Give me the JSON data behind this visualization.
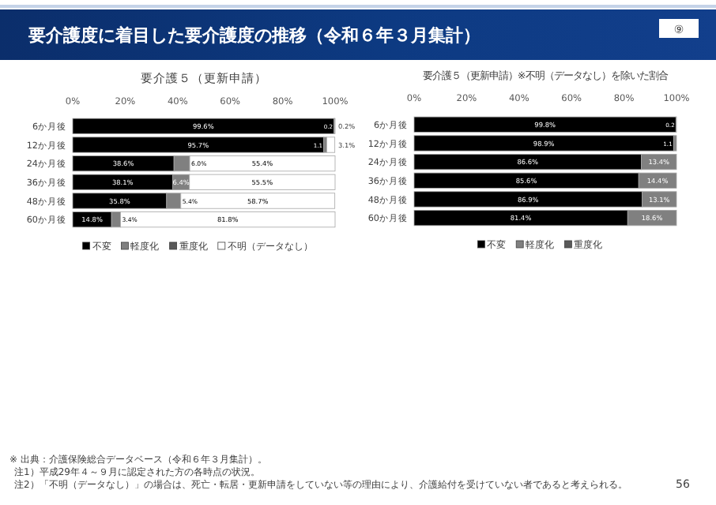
{
  "chart_data": [
    {
      "type": "bar",
      "orientation": "horizontal",
      "stacked": true,
      "title": "要介護５（更新申請）",
      "categories": [
        "6か月後",
        "12か月後",
        "24か月後",
        "36か月後",
        "48か月後",
        "60か月後"
      ],
      "xlim": [
        0,
        100
      ],
      "xticks": [
        {
          "value": 0,
          "label": "0%"
        },
        {
          "value": 20,
          "label": "20%"
        },
        {
          "value": 40,
          "label": "40%"
        },
        {
          "value": 60,
          "label": "60%"
        },
        {
          "value": 80,
          "label": "80%"
        },
        {
          "value": 100,
          "label": "100%"
        }
      ],
      "grid": false,
      "legend": "bottom",
      "series": [
        {
          "name": "不変",
          "color": "#000000",
          "values": [
            99.6,
            95.7,
            38.6,
            38.1,
            35.8,
            14.8
          ],
          "value_labels": [
            "99.6%",
            "95.7%",
            "38.6%",
            "38.1%",
            "35.8%",
            "14.8%"
          ]
        },
        {
          "name": "軽度化",
          "color": "#808080",
          "values": [
            0.2,
            1.1,
            6.0,
            6.4,
            5.4,
            3.4
          ],
          "value_labels": [
            "0.2",
            "1.1",
            "6.0%",
            "6.4%",
            "5.4%",
            "3.4%"
          ]
        },
        {
          "name": "重度化",
          "color": "#595959",
          "values": [
            0,
            0,
            0,
            0,
            0,
            0
          ]
        },
        {
          "name": "不明（データなし）",
          "color": "#ffffff",
          "values": [
            0.2,
            3.1,
            55.4,
            55.5,
            58.7,
            81.8
          ],
          "value_labels": [
            "0.2%",
            "3.1%",
            "55.4%",
            "55.5%",
            "58.7%",
            "81.8%"
          ]
        }
      ],
      "annotations": [
        "要介護度に着目した要介護度の推移（令和６年３月集計）",
        "⑨",
        "※ 出典：介護保険総合データベース（令和６年３月集計）。",
        "注1）平成29年４～９月に認定された方の各時点の状況。",
        "注2）「不明（データなし）」の場合は、死亡・転居・更新申請をしていない等の理由により、介護給付を受けていない者であると考えられる。",
        "56"
      ]
    },
    {
      "type": "bar",
      "orientation": "horizontal",
      "stacked": true,
      "title": "要介護５（更新申請）※不明（データなし）を除いた割合",
      "categories": [
        "6か月後",
        "12か月後",
        "24か月後",
        "36か月後",
        "48か月後",
        "60か月後"
      ],
      "xlim": [
        0,
        100
      ],
      "xticks": [
        {
          "value": 0,
          "label": "0%"
        },
        {
          "value": 20,
          "label": "20%"
        },
        {
          "value": 40,
          "label": "40%"
        },
        {
          "value": 60,
          "label": "60%"
        },
        {
          "value": 80,
          "label": "80%"
        },
        {
          "value": 100,
          "label": "100%"
        }
      ],
      "grid": false,
      "legend": "bottom",
      "series": [
        {
          "name": "不変",
          "color": "#000000",
          "values": [
            99.8,
            98.9,
            86.6,
            85.6,
            86.9,
            81.4
          ],
          "value_labels": [
            "99.8%",
            "98.9%",
            "86.6%",
            "85.6%",
            "86.9%",
            "81.4%"
          ]
        },
        {
          "name": "軽度化",
          "color": "#808080",
          "values": [
            0.2,
            1.1,
            13.4,
            14.4,
            13.1,
            18.6
          ],
          "value_labels": [
            "0.2",
            "1.1",
            "13.4%",
            "14.4%",
            "13.1%",
            "18.6%"
          ]
        },
        {
          "name": "重度化",
          "color": "#595959",
          "values": [
            0,
            0,
            0,
            0,
            0,
            0
          ]
        }
      ]
    }
  ]
}
